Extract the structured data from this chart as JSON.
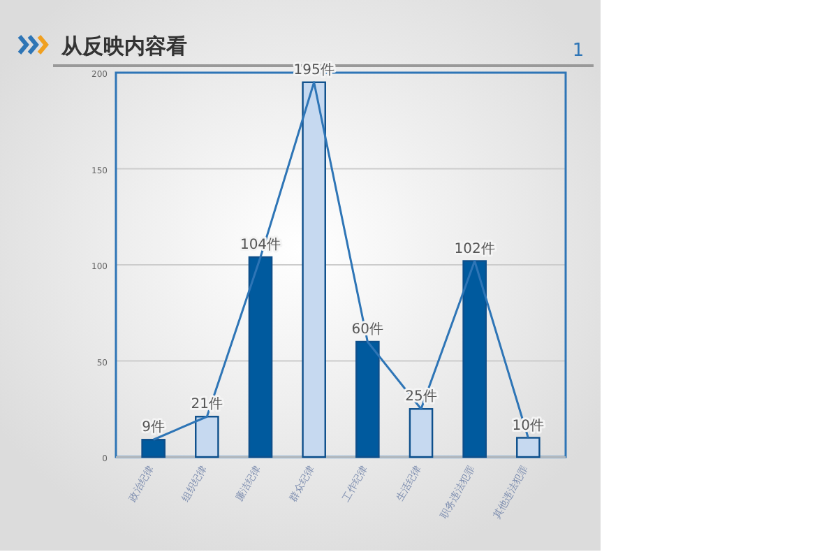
{
  "chart_data": {
    "type": "bar",
    "title": "从反映内容看",
    "annotations": [
      "1"
    ],
    "categories": [
      "政治纪律",
      "组织纪律",
      "廉洁纪律",
      "群众纪律",
      "工作纪律",
      "生活纪律",
      "职务违法犯罪",
      "其他违法犯罪"
    ],
    "series": [
      {
        "colors": [
          "#005a9e",
          "#c6d9f0",
          "#005a9e",
          "#c6d9f0",
          "#005a9e",
          "#c6d9f0",
          "#005a9e",
          "#c6d9f0"
        ],
        "values": [
          9,
          21,
          104,
          195,
          60,
          25,
          102,
          10
        ],
        "value_labels": [
          "9件",
          "21件",
          "104件",
          "195件",
          "60件",
          "25件",
          "102件",
          "10件"
        ]
      },
      {
        "type": "line",
        "color": "#2e75b6",
        "values": [
          9,
          21,
          104,
          195,
          60,
          25,
          102,
          10
        ]
      }
    ],
    "ylim": [
      0,
      200
    ],
    "yticks": [
      0,
      50,
      100,
      150,
      200
    ],
    "grid": "y"
  }
}
